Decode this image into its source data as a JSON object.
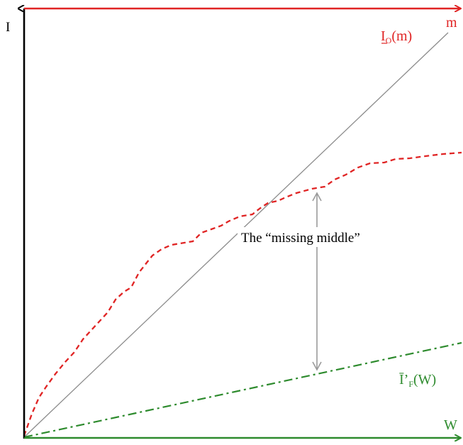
{
  "diagram": {
    "axes": {
      "vertical_label": "I",
      "top_axis_label": "m",
      "bottom_axis_label": "W"
    },
    "curves": {
      "io_curve": {
        "main": "I",
        "subscript": "O",
        "suffix": "(m)",
        "color": "#e02424",
        "style": "dashed"
      },
      "if_curve": {
        "main": "Ī’",
        "subscript": "F",
        "suffix": "(W)",
        "color": "#2e8b2e",
        "style": "dash-dot"
      },
      "diagonal": {
        "color": "#8c8c8c",
        "style": "solid"
      }
    },
    "annotation": {
      "text": "The “missing middle”",
      "arrow_color": "#9a9a9a"
    },
    "colors": {
      "left_axis": "#000000",
      "top_axis": "#e02424",
      "bottom_axis": "#2e8b2e"
    }
  }
}
